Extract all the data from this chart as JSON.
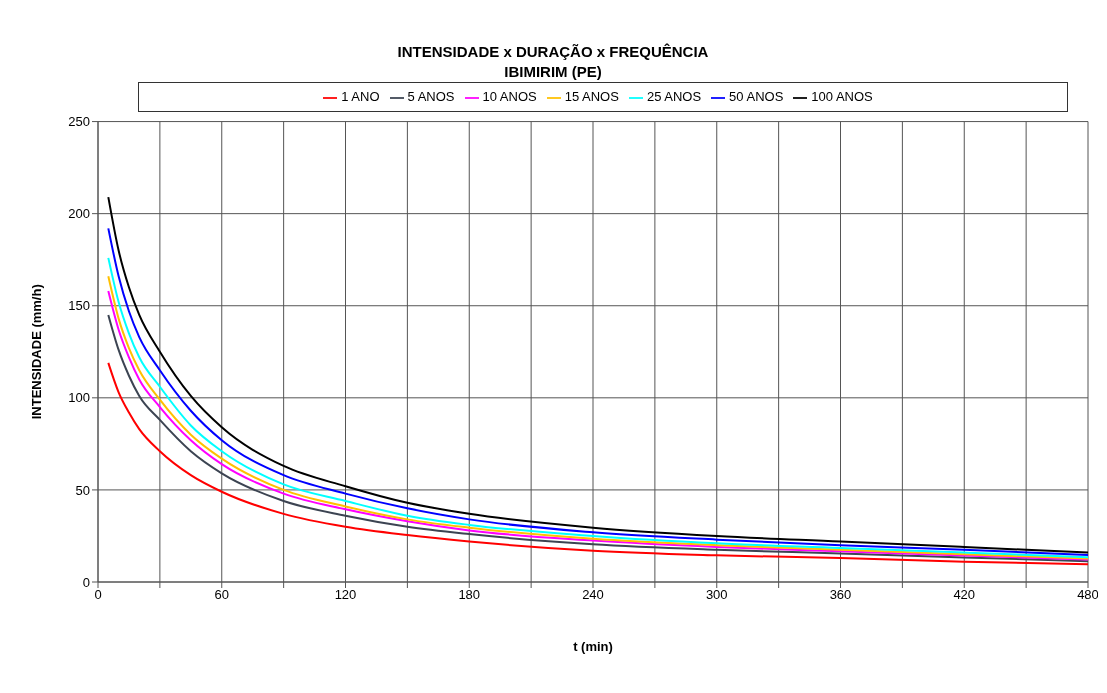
{
  "chart_data": {
    "type": "line",
    "title": "INTENSIDADE x DURAÇÃO x FREQUÊNCIA",
    "subtitle": "IBIMIRIM (PE)",
    "xlabel": "t (min)",
    "ylabel": "INTENSIDADE  (mm/h)",
    "x": [
      5,
      10,
      15,
      20,
      30,
      45,
      60,
      90,
      120,
      150,
      180,
      240,
      300,
      360,
      420,
      480
    ],
    "series": [
      {
        "name": "1 ANO",
        "color": "#ff0000",
        "values": [
          119,
          103,
          92,
          83,
          71,
          58,
          49,
          37,
          30,
          25.5,
          22,
          17,
          14.5,
          13,
          11,
          9.7
        ]
      },
      {
        "name": "5 ANOS",
        "color": "#3c4452",
        "values": [
          145,
          126,
          112,
          101,
          88,
          71,
          59,
          44,
          36,
          30,
          26,
          20.5,
          17.5,
          15.5,
          13.3,
          11.3
        ]
      },
      {
        "name": "10 ANOS",
        "color": "#ff00ff",
        "values": [
          158,
          137,
          122,
          110,
          95,
          77,
          64,
          48,
          39.5,
          33,
          28,
          22.5,
          19,
          16.7,
          14.4,
          12.2
        ]
      },
      {
        "name": "15 ANOS",
        "color": "#ffc000",
        "values": [
          166,
          143,
          127,
          115,
          99,
          80,
          67,
          50,
          41,
          34,
          29.5,
          23.5,
          20,
          17.5,
          15,
          12.8
        ]
      },
      {
        "name": "25 ANOS",
        "color": "#00ffff",
        "values": [
          176,
          152,
          135,
          122,
          106,
          85,
          71,
          53,
          44,
          36,
          31,
          25,
          21,
          18.5,
          16,
          13.5
        ]
      },
      {
        "name": "50 ANOS",
        "color": "#0000ff",
        "values": [
          192,
          166,
          147,
          133,
          115,
          93,
          77,
          58,
          48,
          40,
          34,
          27,
          23,
          20,
          17.5,
          14.7
        ]
      },
      {
        "name": "100 ANOS",
        "color": "#000000",
        "values": [
          209,
          180,
          160,
          145,
          125,
          101,
          84,
          63,
          52,
          43,
          37,
          29.5,
          25,
          22,
          19,
          16
        ]
      }
    ],
    "xlim": [
      0,
      480
    ],
    "xticks": [
      0,
      {
        "value": 30,
        "label": null
      },
      60,
      {
        "value": 90,
        "label": null
      },
      120,
      {
        "value": 150,
        "label": null
      },
      180,
      {
        "value": 210,
        "label": null
      },
      240,
      {
        "value": 270,
        "label": null
      },
      300,
      {
        "value": 330,
        "label": null
      },
      360,
      {
        "value": 390,
        "label": null
      },
      420,
      {
        "value": 450,
        "label": null
      },
      480
    ],
    "ylim": [
      0,
      250
    ],
    "yticks": [
      0,
      50,
      100,
      150,
      200,
      250
    ],
    "grid": true,
    "legend": "top",
    "marker": "none",
    "line_style": "solid"
  }
}
